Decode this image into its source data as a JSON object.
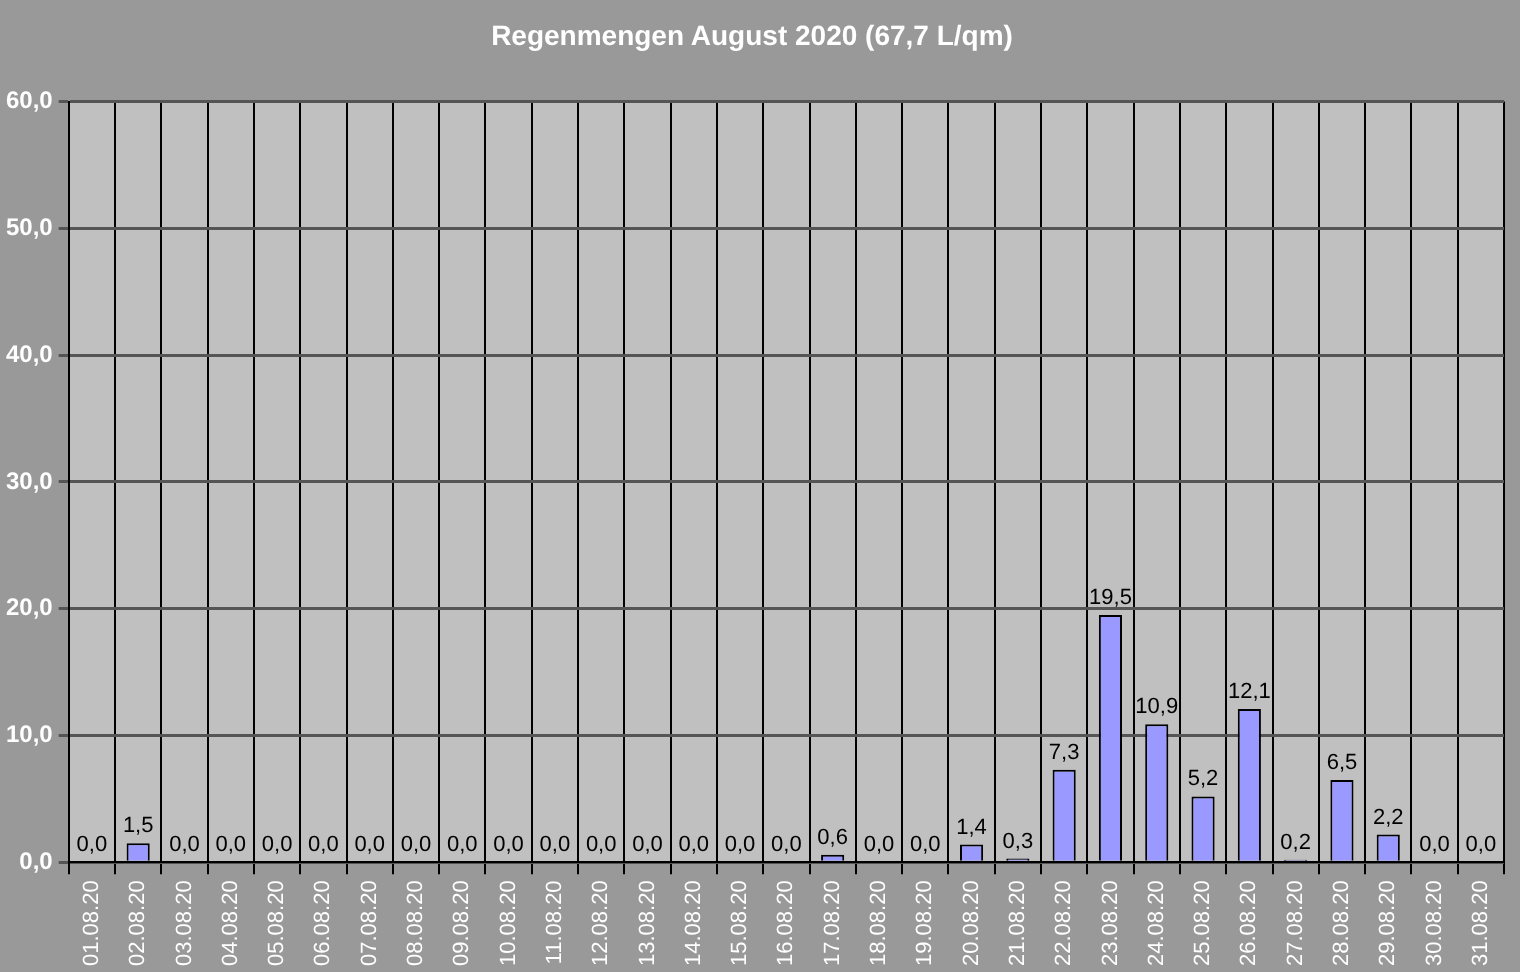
{
  "chart_data": {
    "type": "bar",
    "title": "Regenmengen August 2020 (67,7 L/qm)",
    "categories": [
      "01.08.20",
      "02.08.20",
      "03.08.20",
      "04.08.20",
      "05.08.20",
      "06.08.20",
      "07.08.20",
      "08.08.20",
      "09.08.20",
      "10.08.20",
      "11.08.20",
      "12.08.20",
      "13.08.20",
      "14.08.20",
      "15.08.20",
      "16.08.20",
      "17.08.20",
      "18.08.20",
      "19.08.20",
      "20.08.20",
      "21.08.20",
      "22.08.20",
      "23.08.20",
      "24.08.20",
      "25.08.20",
      "26.08.20",
      "27.08.20",
      "28.08.20",
      "29.08.20",
      "30.08.20",
      "31.08.20"
    ],
    "values": [
      0,
      1.5,
      0,
      0,
      0,
      0,
      0,
      0,
      0,
      0,
      0,
      0,
      0,
      0,
      0,
      0,
      0.6,
      0,
      0,
      1.4,
      0.3,
      7.3,
      19.5,
      10.9,
      5.2,
      12.1,
      0.2,
      6.5,
      2.2,
      0,
      0
    ],
    "value_labels": [
      "0,0",
      "1,5",
      "0,0",
      "0,0",
      "0,0",
      "0,0",
      "0,0",
      "0,0",
      "0,0",
      "0,0",
      "0,0",
      "0,0",
      "0,0",
      "0,0",
      "0,0",
      "0,0",
      "0,6",
      "0,0",
      "0,0",
      "1,4",
      "0,3",
      "7,3",
      "19,5",
      "10,9",
      "5,2",
      "12,1",
      "0,2",
      "6,5",
      "2,2",
      "0,0",
      "0,0"
    ],
    "color": "#9999ff",
    "ylim": [
      0,
      60
    ],
    "yticks": [
      {
        "value": 0,
        "label": "0,0"
      },
      {
        "value": 10,
        "label": "10,0"
      },
      {
        "value": 20,
        "label": "20,0"
      },
      {
        "value": 30,
        "label": "30,0"
      },
      {
        "value": 40,
        "label": "40,0"
      },
      {
        "value": 50,
        "label": "50,0"
      },
      {
        "value": 60,
        "label": "60,0"
      }
    ],
    "grid": true
  }
}
